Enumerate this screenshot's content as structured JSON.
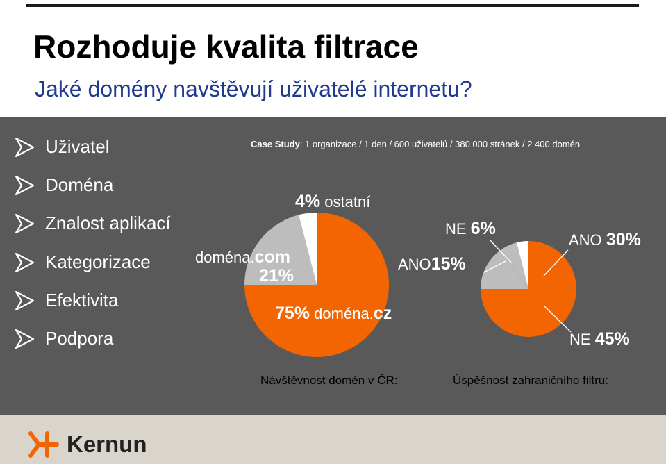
{
  "title": "Rozhoduje kvalita filtrace",
  "subtitle": "Jaké domény navštěvují uživatelé internetu?",
  "menu": [
    {
      "label": "Uživatel"
    },
    {
      "label": "Doména"
    },
    {
      "label": "Znalost aplikací"
    },
    {
      "label": "Kategorizace"
    },
    {
      "label": "Efektivita"
    },
    {
      "label": "Podpora"
    }
  ],
  "case_study": {
    "bold": "Case Study",
    "text": ": 1 organizace / 1 den / 600 uživatelů / 380 000 stránek / 2 400 domén"
  },
  "colors": {
    "orange": "#f26500",
    "gray": "#bdbdbd",
    "white": "#ffffff",
    "panel": "#595959"
  },
  "chart_data": [
    {
      "type": "pie",
      "title": "Návštěvnost domén v ČR:",
      "slices": [
        {
          "name": "doména.cz",
          "value": 75,
          "color": "#f26500"
        },
        {
          "name": "doména.com",
          "value": 21,
          "color": "#bdbdbd"
        },
        {
          "name": "ostatní",
          "value": 4,
          "color": "#ffffff"
        }
      ]
    },
    {
      "type": "pie",
      "title": "Úspěšnost zahraničního filtru:",
      "slices": [
        {
          "name": "NE",
          "value": 45,
          "color": "#f26500"
        },
        {
          "name": "ANO",
          "value": 30,
          "color": "#f26500"
        },
        {
          "name": "ANO",
          "value": 15,
          "color": "#bdbdbd"
        },
        {
          "name": "NE",
          "value": 6,
          "color": "#bdbdbd"
        },
        {
          "name": "",
          "value": 4,
          "color": "#ffffff"
        }
      ]
    }
  ],
  "labels": {
    "ostatni_pct": "4%",
    "ostatni_name": "ostatní",
    "com_name_a": "doména.",
    "com_name_b": "com",
    "com_pct": "21%",
    "cz_pct": "75%",
    "cz_name_a": "doména.",
    "cz_name_b": "cz",
    "ne6_word": "NE ",
    "ne6_pct": "6%",
    "ano15_word": "ANO",
    "ano15_pct": "15%",
    "ano30_word": "ANO ",
    "ano30_pct": "30%",
    "ne45_word": "NE ",
    "ne45_pct": "45%"
  },
  "logo": {
    "text": "Kernun"
  }
}
